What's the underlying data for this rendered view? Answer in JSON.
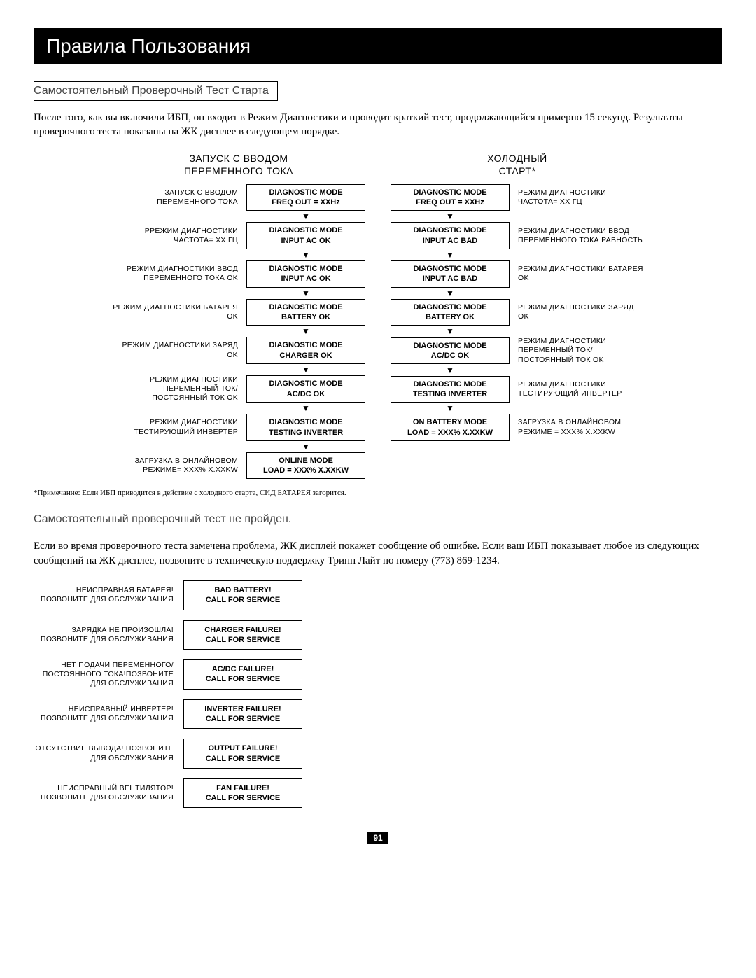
{
  "header": "Правила Пользования",
  "section1_title": "Самостоятельный Проверочный Тест Старта",
  "section1_body": "После того, как вы включили ИБП, он входит в Режим Диагностики и проводит краткий тест, продолжающийся примерно 15 секунд. Результаты проверочного теста показаны на ЖК дисплее в следующем порядке.",
  "left_col_title_l1": "ЗАПУСК С ВВОДОМ",
  "left_col_title_l2": "ПЕРЕМЕННОГО ТОКА",
  "right_col_title_l1": "ХОЛОДНЫЙ",
  "right_col_title_l2": "СТАРТ*",
  "left_steps": [
    {
      "label": "ЗАПУСК С ВВОДОМ ПЕРЕМЕННОГО ТОКА",
      "box_l1": "DIAGNOSTIC MODE",
      "box_l2": "FREQ OUT = XXHz"
    },
    {
      "label": "РРЕЖИМ ДИАГНОСТИКИ ЧАСТОТА= XX ГЦ",
      "box_l1": "DIAGNOSTIC MODE",
      "box_l2": "INPUT AC OK"
    },
    {
      "label": "РЕЖИМ ДИАГНОСТИКИ ВВОД ПЕРЕМЕННОГО ТОКА OK",
      "box_l1": "DIAGNOSTIC MODE",
      "box_l2": "INPUT AC OK"
    },
    {
      "label": "РЕЖИМ ДИАГНОСТИКИ БАТАРЕЯ OK",
      "box_l1": "DIAGNOSTIC MODE",
      "box_l2": "BATTERY OK"
    },
    {
      "label": "РЕЖИМ ДИАГНОСТИКИ ЗАРЯД OK",
      "box_l1": "DIAGNOSTIC MODE",
      "box_l2": "CHARGER OK"
    },
    {
      "label": "РЕЖИМ ДИАГНОСТИКИ ПЕРЕМЕННЫЙ ТОК/ПОСТОЯННЫЙ ТОК OK",
      "box_l1": "DIAGNOSTIC MODE",
      "box_l2": "AC/DC OK"
    },
    {
      "label": "РЕЖИМ ДИАГНОСТИКИ ТЕСТИРУЮЩИЙ ИНВЕРТЕР",
      "box_l1": "DIAGNOSTIC MODE",
      "box_l2": "TESTING INVERTER"
    },
    {
      "label": "ЗАГРУЗКА В ОНЛАЙНОВОМ РЕЖИМЕ= XXX% X.XXKW",
      "box_l1": "ONLINE MODE",
      "box_l2": "LOAD = XXX% X.XXKW"
    }
  ],
  "right_steps": [
    {
      "label": "РЕЖИМ ДИАГНОСТИКИ ЧАСТОТА= XX ГЦ",
      "box_l1": "DIAGNOSTIC MODE",
      "box_l2": "FREQ OUT = XXHz"
    },
    {
      "label": "РЕЖИМ ДИАГНОСТИКИ ВВОД ПЕРЕМЕННОГО ТОКА РАВНОСТЬ",
      "box_l1": "DIAGNOSTIC MODE",
      "box_l2": "INPUT AC BAD"
    },
    {
      "label": "РЕЖИМ ДИАГНОСТИКИ БАТАРЕЯ OK",
      "box_l1": "DIAGNOSTIC MODE",
      "box_l2": "INPUT AC BAD"
    },
    {
      "label": "РЕЖИМ ДИАГНОСТИКИ ЗАРЯД OK",
      "box_l1": "DIAGNOSTIC MODE",
      "box_l2": "BATTERY OK"
    },
    {
      "label": "РЕЖИМ ДИАГНОСТИКИ ПЕРЕМЕННЫЙ ТОК/ПОСТОЯННЫЙ ТОК OK",
      "box_l1": "DIAGNOSTIC MODE",
      "box_l2": "AC/DC OK"
    },
    {
      "label": "РЕЖИМ ДИАГНОСТИКИ ТЕСТИРУЮЩИЙ ИНВЕРТЕР",
      "box_l1": "DIAGNOSTIC MODE",
      "box_l2": "TESTING INVERTER"
    },
    {
      "label": "ЗАГРУЗКА В ОНЛАЙНОВОМ РЕЖИМЕ = XXX% X.XXKW",
      "box_l1": "ON BATTERY MODE",
      "box_l2": "LOAD = XXX% X.XXKW"
    }
  ],
  "footnote": "*Примечание: Если ИБП приводится в действие с холодного старта, СИД БАТАРЕЯ загорится.",
  "section2_title": "Самостоятельный проверочный тест не пройден.",
  "section2_body": "Если во время проверочного теста замечена проблема, ЖК дисплей покажет сообщение об ошибке. Если ваш ИБП показывает любое из следующих сообщений на ЖК дисплее, позвоните в техническую поддержку Трипп Лайт по номеру (773) 869-1234.",
  "fail_rows": [
    {
      "label": "НЕИСПРАВНАЯ БАТАРЕЯ!ПОЗВОНИТЕ ДЛЯ ОБСЛУЖИВАНИЯ",
      "box_l1": "BAD BATTERY!",
      "box_l2": "CALL FOR SERVICE"
    },
    {
      "label": "ЗАРЯДКА НЕ ПРОИЗОШЛА!ПОЗВОНИТЕ ДЛЯ ОБСЛУЖИВАНИЯ",
      "box_l1": "CHARGER FAILURE!",
      "box_l2": "CALL FOR SERVICE"
    },
    {
      "label": "НЕТ ПОДАЧИ ПЕРЕМЕННОГО/ПОСТОЯННОГО ТОКА!ПОЗВОНИТЕ ДЛЯ ОБСЛУЖИВАНИЯ",
      "box_l1": "AC/DC FAILURE!",
      "box_l2": "CALL FOR SERVICE"
    },
    {
      "label": "НЕИСПРАВНЫЙ ИНВЕРТЕР!ПОЗВОНИТЕ ДЛЯ ОБСЛУЖИВАНИЯ",
      "box_l1": "INVERTER FAILURE!",
      "box_l2": "CALL FOR SERVICE"
    },
    {
      "label": "ОТСУТСТВИЕ ВЫВОДА! ПОЗВОНИТЕ ДЛЯ ОБСЛУЖИВАНИЯ",
      "box_l1": "OUTPUT FAILURE!",
      "box_l2": "CALL FOR SERVICE"
    },
    {
      "label": "НЕИСПРАВНЫЙ ВЕНТИЛЯТОР!ПОЗВОНИТЕ ДЛЯ ОБСЛУЖИВАНИЯ",
      "box_l1": "FAN FAILURE!",
      "box_l2": "CALL FOR SERVICE"
    }
  ],
  "page_number": "91",
  "arrow_glyph": "▼"
}
